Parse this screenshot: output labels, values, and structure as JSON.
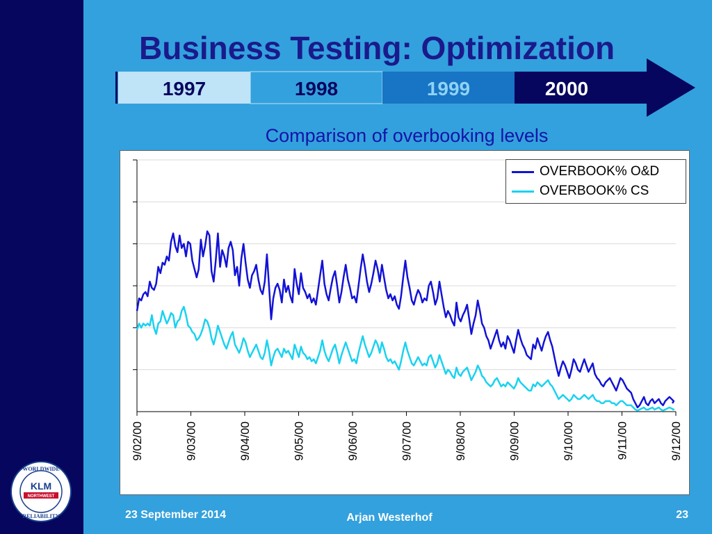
{
  "slide": {
    "title": "Business Testing: Optimization",
    "subtitle": "Comparison of overbooking levels"
  },
  "timeline": {
    "years": [
      {
        "label": "1997",
        "bg": "#bfe3f7",
        "color": "#06065e"
      },
      {
        "label": "1998",
        "bg": "#33a1dd",
        "color": "#06065e"
      },
      {
        "label": "1999",
        "bg": "#1874c4",
        "color": "#8fd3f5"
      },
      {
        "label": "2000",
        "bg": "#06065e",
        "color": "#ffffff"
      }
    ],
    "arrow_color": "#06065e"
  },
  "chart_data": {
    "type": "line",
    "title": "Comparison of overbooking levels",
    "xlabel": "",
    "ylabel": "",
    "x_tick_labels": [
      "9/02/00",
      "9/03/00",
      "9/04/00",
      "9/05/00",
      "9/06/00",
      "9/07/00",
      "9/08/00",
      "9/09/00",
      "9/10/00",
      "9/11/00",
      "9/12/00"
    ],
    "y_gridlines": 6,
    "y_tick_labels": "none",
    "grid": "horizontal",
    "legend_position": "top-right",
    "series": [
      {
        "name": "OVERBOOK% O&D",
        "color": "#1212d6",
        "values": [
          4.8,
          5.4,
          5.3,
          5.6,
          5.7,
          5.5,
          6.2,
          5.9,
          5.8,
          6.1,
          6.9,
          6.6,
          7.1,
          7.0,
          7.4,
          7.2,
          8.1,
          8.5,
          7.9,
          7.6,
          8.4,
          7.8,
          8.0,
          7.4,
          8.1,
          8.0,
          7.2,
          6.8,
          6.4,
          6.8,
          8.2,
          7.4,
          7.9,
          8.6,
          8.4,
          6.7,
          6.2,
          7.2,
          8.5,
          6.9,
          7.7,
          7.4,
          6.9,
          7.8,
          8.1,
          7.7,
          6.5,
          6.9,
          6.0,
          7.3,
          8.0,
          7.1,
          6.3,
          5.9,
          6.5,
          6.7,
          7.0,
          6.3,
          5.8,
          5.6,
          6.2,
          7.5,
          6.0,
          4.4,
          5.4,
          5.9,
          6.1,
          5.8,
          5.2,
          6.3,
          5.7,
          6.0,
          5.5,
          5.2,
          6.8,
          6.1,
          5.6,
          6.6,
          5.9,
          5.7,
          5.4,
          5.6,
          5.2,
          5.4,
          5.1,
          5.8,
          6.5,
          7.2,
          6.1,
          5.6,
          5.3,
          5.9,
          6.4,
          6.7,
          6.0,
          5.2,
          5.7,
          6.4,
          7.0,
          6.3,
          5.9,
          5.4,
          5.5,
          5.2,
          6.0,
          6.8,
          7.5,
          6.9,
          6.2,
          5.7,
          6.1,
          6.6,
          7.2,
          6.8,
          6.2,
          7.0,
          6.4,
          5.8,
          5.4,
          5.6,
          5.3,
          5.5,
          5.1,
          4.9,
          5.5,
          6.4,
          7.2,
          6.4,
          5.9,
          5.3,
          5.1,
          5.5,
          5.8,
          5.6,
          5.2,
          5.4,
          5.3,
          6.0,
          6.2,
          5.7,
          5.1,
          5.4,
          6.2,
          5.6,
          5.0,
          4.5,
          4.8,
          4.6,
          4.3,
          4.1,
          5.2,
          4.5,
          4.3,
          4.6,
          4.8,
          5.1,
          4.4,
          3.7,
          4.2,
          4.6,
          5.3,
          4.8,
          4.2,
          4.0,
          3.6,
          3.4,
          3.0,
          3.3,
          3.6,
          3.9,
          3.4,
          3.1,
          3.3,
          3.0,
          3.6,
          3.4,
          3.1,
          2.8,
          3.4,
          3.9,
          3.5,
          3.2,
          3.0,
          2.7,
          2.6,
          2.5,
          3.2,
          3.0,
          3.5,
          3.2,
          2.9,
          3.3,
          3.6,
          3.8,
          3.4,
          3.1,
          2.6,
          2.1,
          1.7,
          2.1,
          2.4,
          2.2,
          1.9,
          1.6,
          2.0,
          2.5,
          2.3,
          2.0,
          1.9,
          2.2,
          2.5,
          2.2,
          1.9,
          2.1,
          2.3,
          1.8,
          1.6,
          1.5,
          1.3,
          1.2,
          1.4,
          1.5,
          1.6,
          1.4,
          1.2,
          1.0,
          1.3,
          1.6,
          1.5,
          1.3,
          1.1,
          1.0,
          0.9,
          0.6,
          0.4,
          0.2,
          0.3,
          0.5,
          0.7,
          0.4,
          0.3,
          0.5,
          0.6,
          0.4,
          0.5,
          0.6,
          0.4,
          0.3,
          0.5,
          0.6,
          0.7,
          0.6,
          0.5,
          0.4
        ]
      },
      {
        "name": "OVERBOOK% CS",
        "color": "#19d2f0",
        "values": [
          3.9,
          4.2,
          4.0,
          4.2,
          4.1,
          4.2,
          4.1,
          4.6,
          4.0,
          3.7,
          4.2,
          4.3,
          4.8,
          4.5,
          4.2,
          4.4,
          4.7,
          4.6,
          4.0,
          4.3,
          4.4,
          4.8,
          5.0,
          4.6,
          4.1,
          4.0,
          3.8,
          3.7,
          3.4,
          3.5,
          3.7,
          4.0,
          4.4,
          4.3,
          4.0,
          3.5,
          3.2,
          3.6,
          4.1,
          3.8,
          3.5,
          3.2,
          3.0,
          3.3,
          3.6,
          3.8,
          3.2,
          3.0,
          2.8,
          3.1,
          3.5,
          3.3,
          2.9,
          2.6,
          2.8,
          3.0,
          3.2,
          2.9,
          2.6,
          2.5,
          2.8,
          3.4,
          2.9,
          2.2,
          2.6,
          2.9,
          3.0,
          2.8,
          2.6,
          3.0,
          2.8,
          2.9,
          2.7,
          2.5,
          3.2,
          2.9,
          2.6,
          3.1,
          2.8,
          2.7,
          2.5,
          2.6,
          2.4,
          2.5,
          2.3,
          2.6,
          2.9,
          3.4,
          2.9,
          2.6,
          2.4,
          2.7,
          3.0,
          3.2,
          2.8,
          2.3,
          2.7,
          3.0,
          3.3,
          3.0,
          2.7,
          2.4,
          2.5,
          2.3,
          2.8,
          3.2,
          3.6,
          3.2,
          2.9,
          2.6,
          2.8,
          3.1,
          3.4,
          3.2,
          2.8,
          3.3,
          3.0,
          2.6,
          2.4,
          2.5,
          2.3,
          2.4,
          2.2,
          2.0,
          2.4,
          2.9,
          3.3,
          2.9,
          2.6,
          2.3,
          2.2,
          2.4,
          2.6,
          2.4,
          2.2,
          2.3,
          2.2,
          2.6,
          2.7,
          2.4,
          2.1,
          2.3,
          2.7,
          2.4,
          2.1,
          1.8,
          2.0,
          1.9,
          1.7,
          1.6,
          2.1,
          1.8,
          1.7,
          1.9,
          2.0,
          2.1,
          1.8,
          1.5,
          1.7,
          1.9,
          2.2,
          2.0,
          1.7,
          1.6,
          1.4,
          1.3,
          1.2,
          1.3,
          1.5,
          1.6,
          1.4,
          1.2,
          1.3,
          1.2,
          1.4,
          1.3,
          1.2,
          1.1,
          1.3,
          1.6,
          1.4,
          1.3,
          1.2,
          1.1,
          1.0,
          1.0,
          1.3,
          1.2,
          1.4,
          1.3,
          1.2,
          1.3,
          1.4,
          1.5,
          1.3,
          1.2,
          1.0,
          0.8,
          0.6,
          0.7,
          0.8,
          0.7,
          0.6,
          0.5,
          0.6,
          0.8,
          0.7,
          0.6,
          0.6,
          0.7,
          0.8,
          0.7,
          0.6,
          0.7,
          0.8,
          0.6,
          0.5,
          0.5,
          0.4,
          0.4,
          0.5,
          0.5,
          0.5,
          0.4,
          0.4,
          0.3,
          0.4,
          0.5,
          0.5,
          0.4,
          0.3,
          0.3,
          0.3,
          0.2,
          0.1,
          0.05,
          0.1,
          0.15,
          0.2,
          0.1,
          0.1,
          0.15,
          0.2,
          0.1,
          0.15,
          0.2,
          0.1,
          0.05,
          0.1,
          0.15,
          0.2,
          0.15,
          0.1,
          0.1
        ]
      }
    ]
  },
  "footer": {
    "date": "23 September 2014",
    "author": "Arjan Westerhof",
    "page": "23"
  },
  "logo": {
    "top_text": "WORLDWIDE",
    "bottom_text": "RELIABILITY",
    "brand": "KLM",
    "sub_brand": "NORTHWEST"
  },
  "colors": {
    "background": "#33a1dd",
    "left_bar": "#06065e",
    "title": "#1a1a8c"
  }
}
